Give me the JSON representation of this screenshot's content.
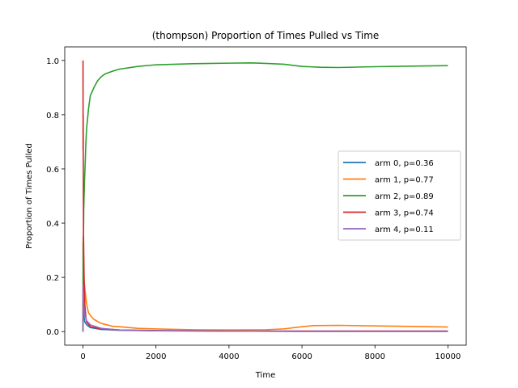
{
  "chart_data": {
    "type": "line",
    "title": "(thompson) Proportion of Times Pulled vs Time",
    "xlabel": "Time",
    "ylabel": "Proportion of Times Pulled",
    "xlim": [
      -500,
      10500
    ],
    "ylim": [
      -0.05,
      1.05
    ],
    "xticks": [
      0,
      2000,
      4000,
      6000,
      8000,
      10000
    ],
    "xtick_labels": [
      "0",
      "2000",
      "4000",
      "6000",
      "8000",
      "10000"
    ],
    "yticks": [
      0.0,
      0.2,
      0.4,
      0.6,
      0.8,
      1.0
    ],
    "ytick_labels": [
      "0.0",
      "0.2",
      "0.4",
      "0.6",
      "0.8",
      "1.0"
    ],
    "grid": false,
    "legend_position": "center-right",
    "series": [
      {
        "name": "arm 0, p=0.36",
        "color": "#1f77b4",
        "points": [
          [
            1,
            0.0
          ],
          [
            3,
            0.33
          ],
          [
            5,
            0.2
          ],
          [
            10,
            0.1
          ],
          [
            20,
            0.06
          ],
          [
            50,
            0.035
          ],
          [
            100,
            0.025
          ],
          [
            200,
            0.015
          ],
          [
            500,
            0.008
          ],
          [
            1000,
            0.005
          ],
          [
            2000,
            0.003
          ],
          [
            4000,
            0.002
          ],
          [
            6000,
            0.001
          ],
          [
            8000,
            0.001
          ],
          [
            10000,
            0.001
          ]
        ]
      },
      {
        "name": "arm 1, p=0.77",
        "color": "#ff7f0e",
        "points": [
          [
            1,
            0.0
          ],
          [
            3,
            0.3
          ],
          [
            5,
            0.35
          ],
          [
            10,
            0.25
          ],
          [
            20,
            0.2
          ],
          [
            50,
            0.16
          ],
          [
            100,
            0.1
          ],
          [
            150,
            0.07
          ],
          [
            200,
            0.06
          ],
          [
            300,
            0.045
          ],
          [
            500,
            0.03
          ],
          [
            800,
            0.02
          ],
          [
            1000,
            0.018
          ],
          [
            1500,
            0.012
          ],
          [
            2000,
            0.01
          ],
          [
            3000,
            0.007
          ],
          [
            4000,
            0.006
          ],
          [
            5000,
            0.007
          ],
          [
            5500,
            0.01
          ],
          [
            6000,
            0.018
          ],
          [
            6300,
            0.022
          ],
          [
            7000,
            0.023
          ],
          [
            8000,
            0.021
          ],
          [
            9000,
            0.019
          ],
          [
            10000,
            0.017
          ]
        ]
      },
      {
        "name": "arm 2, p=0.89",
        "color": "#2ca02c",
        "points": [
          [
            1,
            0.0
          ],
          [
            5,
            0.15
          ],
          [
            10,
            0.3
          ],
          [
            20,
            0.45
          ],
          [
            40,
            0.55
          ],
          [
            60,
            0.62
          ],
          [
            80,
            0.7
          ],
          [
            100,
            0.75
          ],
          [
            150,
            0.82
          ],
          [
            200,
            0.87
          ],
          [
            300,
            0.9
          ],
          [
            400,
            0.925
          ],
          [
            500,
            0.94
          ],
          [
            600,
            0.95
          ],
          [
            800,
            0.96
          ],
          [
            1000,
            0.968
          ],
          [
            1500,
            0.978
          ],
          [
            2000,
            0.984
          ],
          [
            3000,
            0.988
          ],
          [
            4000,
            0.99
          ],
          [
            4600,
            0.991
          ],
          [
            5000,
            0.989
          ],
          [
            5500,
            0.986
          ],
          [
            6000,
            0.978
          ],
          [
            6500,
            0.975
          ],
          [
            7000,
            0.974
          ],
          [
            8000,
            0.977
          ],
          [
            9000,
            0.979
          ],
          [
            10000,
            0.981
          ]
        ]
      },
      {
        "name": "arm 3, p=0.74",
        "color": "#d62728",
        "points": [
          [
            1,
            1.0
          ],
          [
            3,
            0.67
          ],
          [
            5,
            0.8
          ],
          [
            8,
            0.6
          ],
          [
            10,
            0.5
          ],
          [
            15,
            0.35
          ],
          [
            20,
            0.3
          ],
          [
            30,
            0.2
          ],
          [
            50,
            0.1
          ],
          [
            80,
            0.05
          ],
          [
            100,
            0.035
          ],
          [
            200,
            0.018
          ],
          [
            500,
            0.01
          ],
          [
            1000,
            0.006
          ],
          [
            2000,
            0.004
          ],
          [
            4000,
            0.002
          ],
          [
            6000,
            0.002
          ],
          [
            8000,
            0.002
          ],
          [
            10000,
            0.002
          ]
        ]
      },
      {
        "name": "arm 4, p=0.11",
        "color": "#9467bd",
        "points": [
          [
            1,
            0.0
          ],
          [
            3,
            0.17
          ],
          [
            5,
            0.14
          ],
          [
            10,
            0.12
          ],
          [
            20,
            0.1
          ],
          [
            30,
            0.08
          ],
          [
            50,
            0.06
          ],
          [
            100,
            0.04
          ],
          [
            200,
            0.025
          ],
          [
            500,
            0.012
          ],
          [
            1000,
            0.006
          ],
          [
            2000,
            0.003
          ],
          [
            4000,
            0.002
          ],
          [
            6000,
            0.001
          ],
          [
            8000,
            0.001
          ],
          [
            10000,
            0.001
          ]
        ]
      }
    ]
  }
}
